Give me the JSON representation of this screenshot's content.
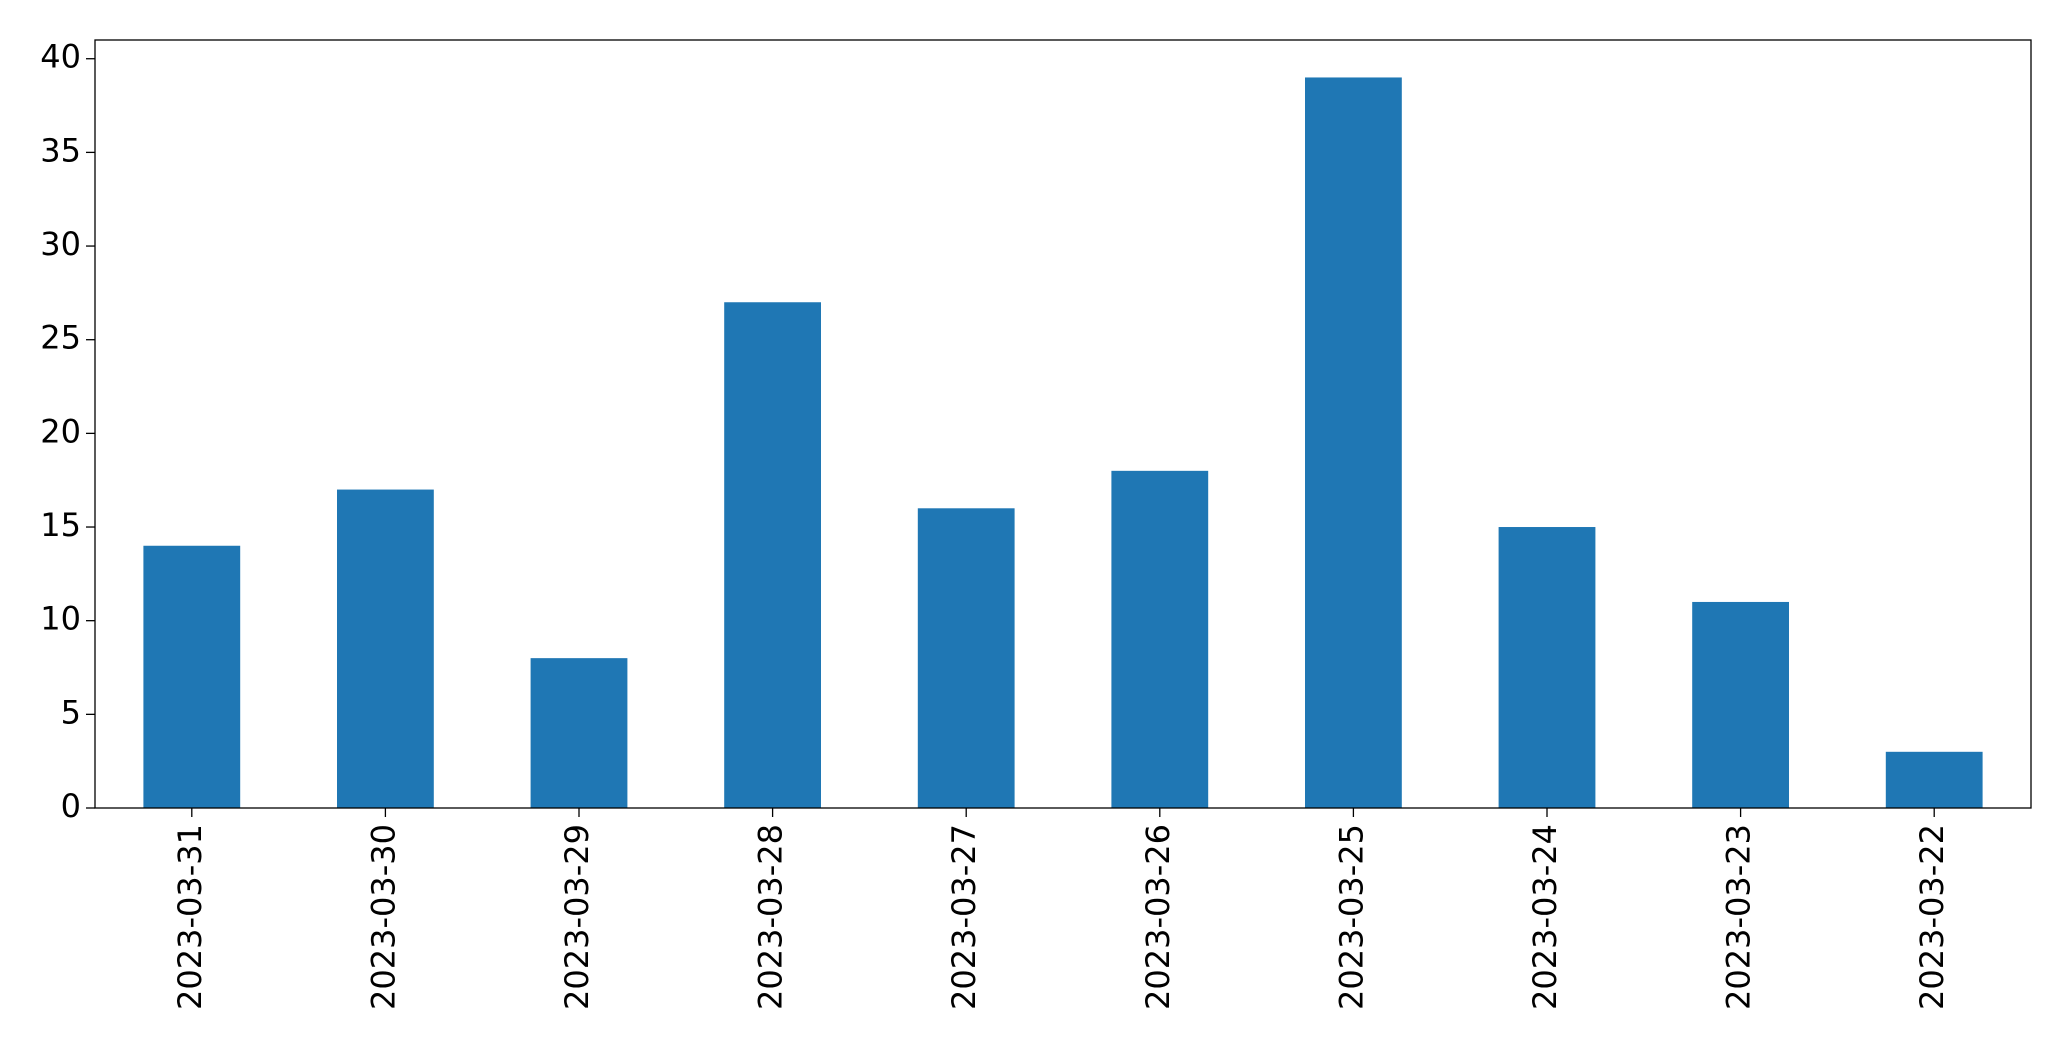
{
  "chart_data": {
    "type": "bar",
    "categories": [
      "2023-03-31",
      "2023-03-30",
      "2023-03-29",
      "2023-03-28",
      "2023-03-27",
      "2023-03-26",
      "2023-03-25",
      "2023-03-24",
      "2023-03-23",
      "2023-03-22"
    ],
    "values": [
      14,
      17,
      8,
      27,
      16,
      18,
      39,
      15,
      11,
      3
    ],
    "color": "#1f77b4",
    "ylim": [
      0,
      41
    ],
    "yticks": [
      0,
      5,
      10,
      15,
      20,
      25,
      30,
      35,
      40
    ],
    "grid": false
  }
}
